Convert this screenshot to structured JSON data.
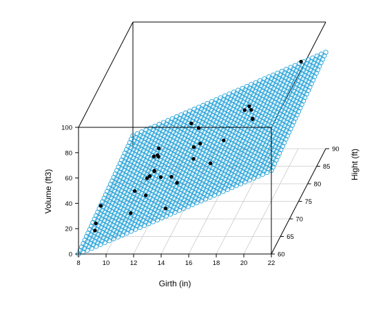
{
  "chart_data": {
    "type": "scatter3d",
    "xlabel": "Girth (in)",
    "ylabel": "Hight (ft)",
    "zlabel": "Volume (ft3)",
    "xlim": [
      8,
      22
    ],
    "ylim": [
      60,
      90
    ],
    "zlim": [
      0,
      100
    ],
    "xticks": [
      "8",
      "10",
      "12",
      "14",
      "16",
      "18",
      "20",
      "22"
    ],
    "yticks": [
      "60",
      "65",
      "70",
      "75",
      "80",
      "85",
      "90"
    ],
    "zticks": [
      "0",
      "20",
      "40",
      "60",
      "80",
      "100"
    ],
    "grid": true,
    "plane": {
      "description": "regression plane",
      "color": "#1fa0d8",
      "formula_volume": "-57.99 + 4.708*girth + 0.339*height"
    },
    "point_color": "#000000",
    "points": [
      {
        "girth": 8.3,
        "height": 70,
        "volume": 10.3
      },
      {
        "girth": 8.6,
        "height": 65,
        "volume": 10.3
      },
      {
        "girth": 8.8,
        "height": 63,
        "volume": 10.2
      },
      {
        "girth": 10.5,
        "height": 72,
        "volume": 16.4
      },
      {
        "girth": 10.7,
        "height": 81,
        "volume": 18.8
      },
      {
        "girth": 10.8,
        "height": 83,
        "volume": 19.7
      },
      {
        "girth": 11.0,
        "height": 66,
        "volume": 15.6
      },
      {
        "girth": 11.0,
        "height": 75,
        "volume": 18.2
      },
      {
        "girth": 11.1,
        "height": 80,
        "volume": 22.6
      },
      {
        "girth": 11.2,
        "height": 75,
        "volume": 19.9
      },
      {
        "girth": 11.3,
        "height": 79,
        "volume": 24.2
      },
      {
        "girth": 11.4,
        "height": 76,
        "volume": 21.0
      },
      {
        "girth": 11.4,
        "height": 76,
        "volume": 21.4
      },
      {
        "girth": 11.7,
        "height": 69,
        "volume": 21.3
      },
      {
        "girth": 12.0,
        "height": 75,
        "volume": 19.1
      },
      {
        "girth": 12.9,
        "height": 74,
        "volume": 22.2
      },
      {
        "girth": 12.9,
        "height": 85,
        "volume": 33.8
      },
      {
        "girth": 13.3,
        "height": 86,
        "volume": 27.4
      },
      {
        "girth": 13.7,
        "height": 71,
        "volume": 25.7
      },
      {
        "girth": 13.8,
        "height": 64,
        "volume": 24.9
      },
      {
        "girth": 14.0,
        "height": 78,
        "volume": 34.5
      },
      {
        "girth": 14.2,
        "height": 80,
        "volume": 31.7
      },
      {
        "girth": 14.5,
        "height": 74,
        "volume": 36.3
      },
      {
        "girth": 16.0,
        "height": 72,
        "volume": 38.3
      },
      {
        "girth": 16.3,
        "height": 77,
        "volume": 42.6
      },
      {
        "girth": 17.3,
        "height": 81,
        "volume": 55.4
      },
      {
        "girth": 17.5,
        "height": 82,
        "volume": 55.7
      },
      {
        "girth": 17.9,
        "height": 80,
        "volume": 58.3
      },
      {
        "girth": 18.0,
        "height": 80,
        "volume": 51.5
      },
      {
        "girth": 18.0,
        "height": 80,
        "volume": 51.0
      },
      {
        "girth": 20.6,
        "height": 87,
        "volume": 77.0
      }
    ]
  }
}
